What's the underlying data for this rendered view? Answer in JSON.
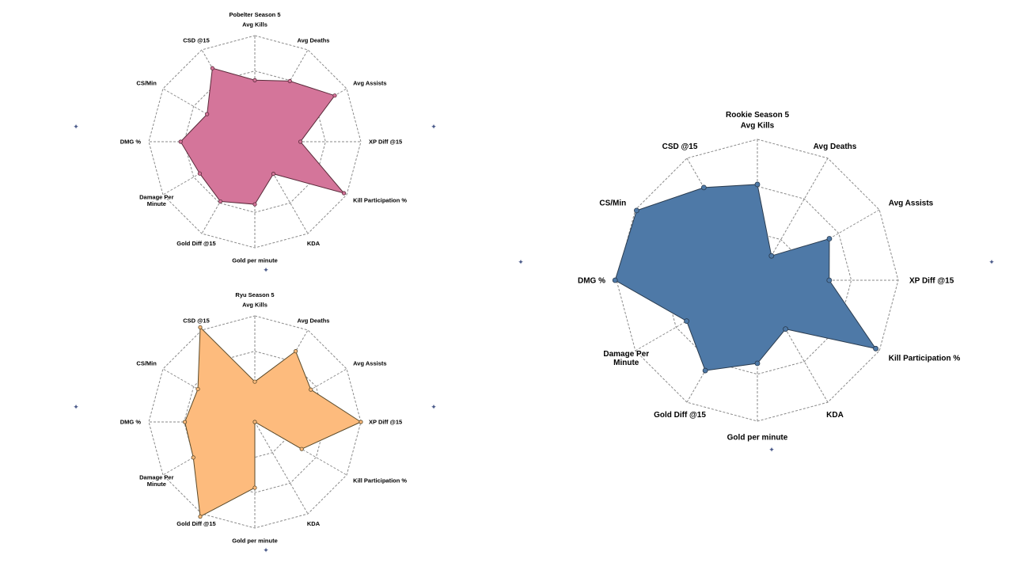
{
  "chart_data": [
    {
      "type": "radar",
      "title": "Pobelter Season 5",
      "axes": [
        "Avg Kills",
        "Avg Deaths",
        "Avg Assists",
        "XP Diff @15",
        "Kill Participation %",
        "KDA",
        "Gold per minute",
        "Gold Diff @15",
        "Damage Per Minute",
        "DMG %",
        "CS/Min",
        "CSD @15"
      ],
      "values": [
        0.58,
        0.66,
        0.87,
        0.43,
        0.97,
        0.35,
        0.59,
        0.65,
        0.6,
        0.7,
        0.52,
        0.8
      ],
      "range": [
        0,
        1
      ],
      "rings": 3,
      "fill_color": "#d4759a",
      "stroke_color": "#5a2a3a"
    },
    {
      "type": "radar",
      "title": "Ryu Season 5",
      "axes": [
        "Avg Kills",
        "Avg Deaths",
        "Avg Assists",
        "XP Diff @15",
        "Kill Participation %",
        "KDA",
        "Gold per minute",
        "Gold Diff @15",
        "Damage Per Minute",
        "DMG %",
        "CS/Min",
        "CSD @15"
      ],
      "values": [
        0.38,
        0.77,
        0.61,
        1.0,
        0.51,
        0.0,
        0.62,
        1.03,
        0.67,
        0.66,
        0.62,
        1.03
      ],
      "range": [
        0,
        1
      ],
      "rings": 3,
      "fill_color": "#fdbb7d",
      "stroke_color": "#5a4a2a"
    },
    {
      "type": "radar",
      "title": "Rookie Season 5",
      "axes": [
        "Avg Kills",
        "Avg Deaths",
        "Avg Assists",
        "XP Diff @15",
        "Kill Participation %",
        "KDA",
        "Gold per minute",
        "Gold Diff @15",
        "Damage Per Minute",
        "DMG %",
        "CS/Min",
        "CSD @15"
      ],
      "values": [
        0.68,
        0.2,
        0.59,
        0.51,
        0.97,
        0.4,
        0.59,
        0.74,
        0.58,
        1.01,
        0.99,
        0.76
      ],
      "range": [
        0,
        1
      ],
      "rings": 3,
      "fill_color": "#4e79a7",
      "stroke_color": "#2a3b4e"
    }
  ]
}
